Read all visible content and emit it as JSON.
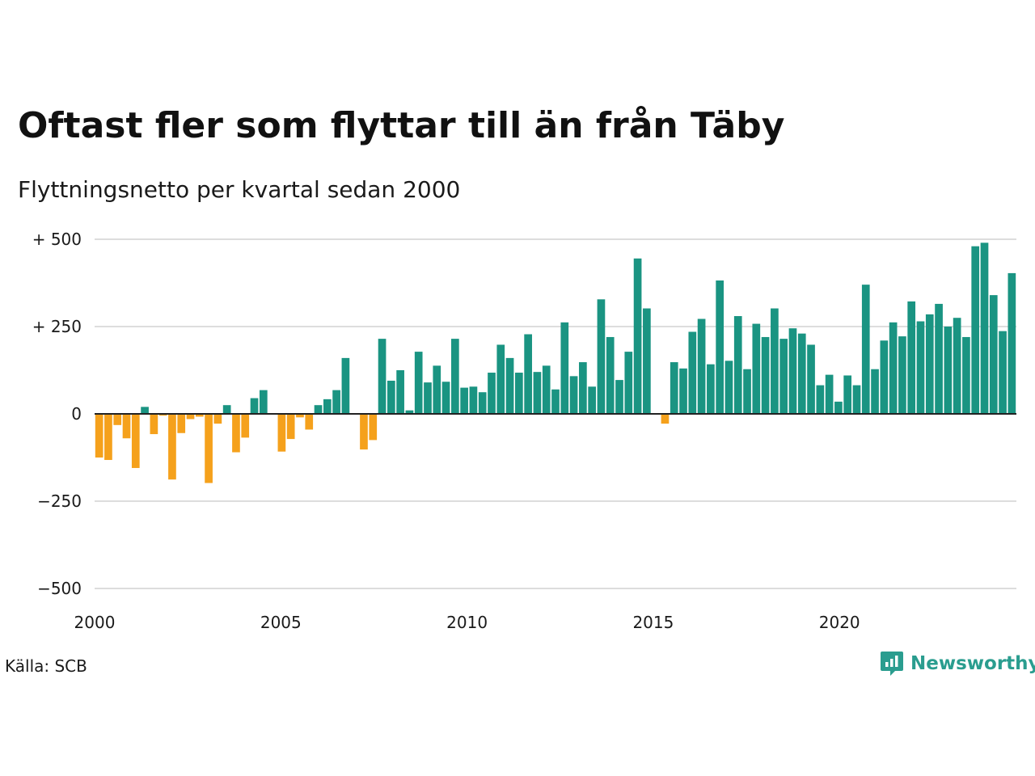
{
  "title": "Oftast fler som flyttar till än från Täby",
  "subtitle": "Flyttningsnetto per kvartal sedan 2000",
  "source": "Källa: SCB",
  "brand": "Newsworthy",
  "colors": {
    "positive": "#1a9482",
    "negative": "#f5a11c",
    "grid": "#dddddd",
    "zero_line": "#222222",
    "brand": "#2a9d8f"
  },
  "chart_data": {
    "type": "bar",
    "title": "Oftast fler som flyttar till än från Täby",
    "subtitle": "Flyttningsnetto per kvartal sedan 2000",
    "xlabel": "",
    "ylabel": "",
    "xlim": [
      2000,
      2024.75
    ],
    "ylim": [
      -500,
      500
    ],
    "grid": true,
    "yticks": [
      {
        "value": 500,
        "label": "+ 500"
      },
      {
        "value": 250,
        "label": "+ 250"
      },
      {
        "value": 0,
        "label": "0"
      },
      {
        "value": -250,
        "label": "−250"
      },
      {
        "value": -500,
        "label": "−500"
      }
    ],
    "xticks": [
      {
        "value": 2000,
        "label": "2000"
      },
      {
        "value": 2005,
        "label": "2005"
      },
      {
        "value": 2010,
        "label": "2010"
      },
      {
        "value": 2015,
        "label": "2015"
      },
      {
        "value": 2020,
        "label": "2020"
      }
    ],
    "start_quarter": "2000K1",
    "frequency": "quarterly",
    "values": [
      -125,
      -132,
      -32,
      -70,
      -155,
      20,
      -58,
      -5,
      -188,
      -55,
      -15,
      -8,
      -198,
      -28,
      25,
      -110,
      -68,
      45,
      68,
      0,
      -108,
      -72,
      -10,
      -45,
      25,
      42,
      68,
      160,
      0,
      -102,
      -75,
      215,
      95,
      125,
      10,
      178,
      90,
      138,
      92,
      215,
      75,
      78,
      62,
      118,
      198,
      160,
      118,
      228,
      120,
      138,
      70,
      262,
      108,
      148,
      78,
      328,
      220,
      97,
      178,
      445,
      302,
      0,
      -28,
      148,
      130,
      235,
      272,
      142,
      382,
      152,
      280,
      128,
      258,
      220,
      302,
      215,
      245,
      230,
      198,
      82,
      112,
      35,
      110,
      82,
      370,
      128,
      210,
      262,
      222,
      322,
      265,
      285,
      315,
      250,
      275,
      220,
      480,
      490,
      340,
      237,
      403
    ]
  }
}
